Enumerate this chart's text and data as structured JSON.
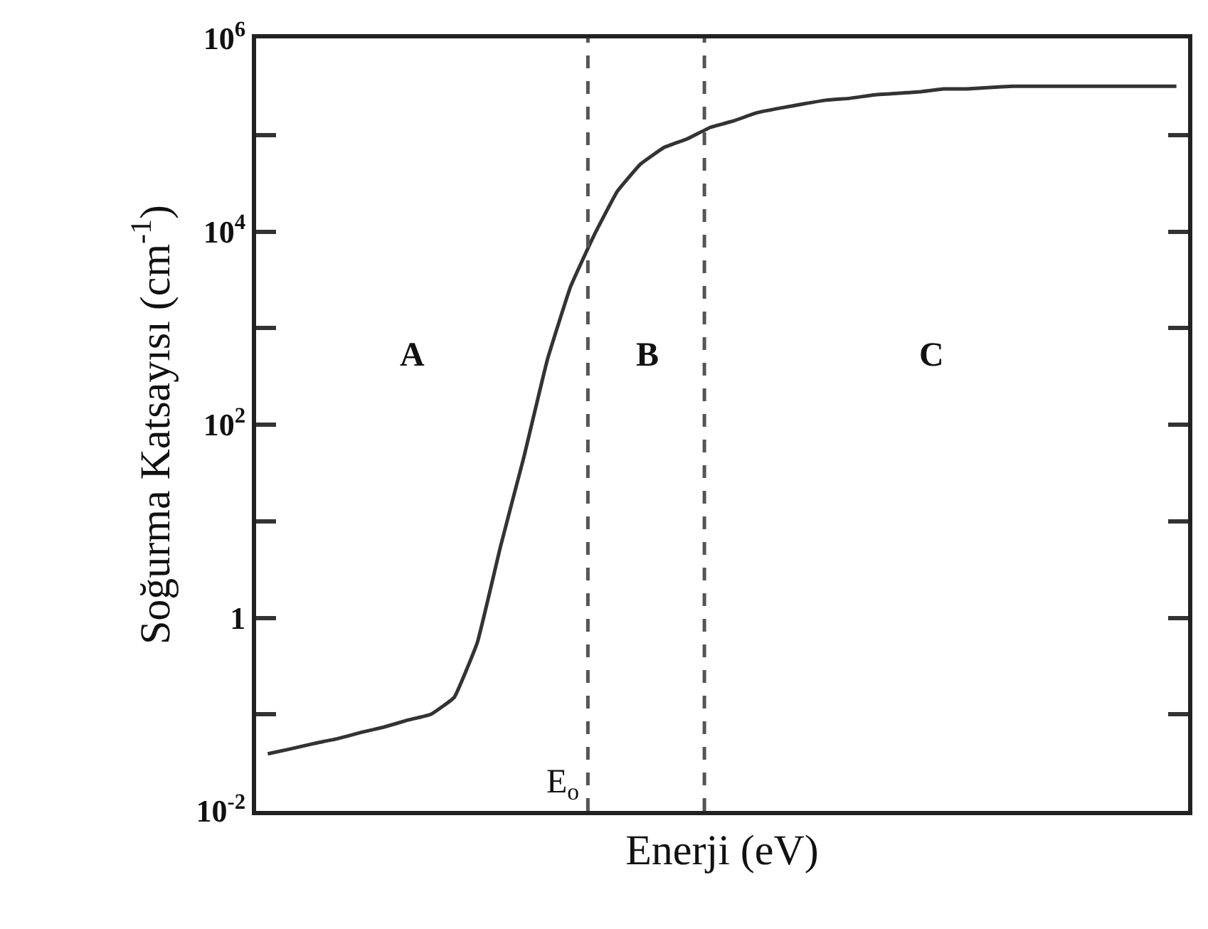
{
  "chart_data": {
    "type": "line",
    "xlabel": "Enerji (eV)",
    "ylabel": "Soğurma Katsayısı (cm$^{-1}$)",
    "categories": [
      null,
      null,
      null,
      null,
      null,
      null,
      null,
      null,
      null,
      null,
      null,
      null,
      null,
      null,
      null,
      null,
      null,
      null,
      null,
      null,
      null,
      null,
      null,
      null,
      null,
      null,
      null,
      null,
      null,
      null,
      null,
      null,
      null,
      null,
      null,
      null,
      null,
      null,
      null,
      null
    ],
    "series": [
      {
        "color": "#333333",
        "values": [
          0.039,
          0.044,
          0.05,
          0.056,
          0.065,
          0.074,
          0.087,
          0.1,
          0.15,
          0.56,
          5.6,
          47,
          470,
          2700,
          9100,
          26000,
          50000,
          74000,
          91000,
          120000,
          140000,
          170000,
          190000,
          210000,
          230000,
          240000,
          260000,
          270000,
          280000,
          300000,
          300000,
          310000,
          320000,
          320000,
          320000,
          320000,
          320000,
          320000,
          320000,
          320000
        ]
      }
    ],
    "log": "y",
    "ylim": [
      0.01,
      1000000
    ],
    "yticks": [
      {
        "value": 0.01,
        "label": "10$^{-2}$"
      },
      {
        "value": 0.1,
        "label": null
      },
      {
        "value": 1,
        "label": "1"
      },
      {
        "value": 10,
        "label": null
      },
      {
        "value": 100,
        "label": "10$^{2}$"
      },
      {
        "value": 1000,
        "label": null
      },
      {
        "value": 10000,
        "label": "10$^{4}$"
      },
      {
        "value": 100000,
        "label": null
      },
      {
        "value": 1000000,
        "label": "10$^{6}$"
      }
    ],
    "tick_labels": "y",
    "legend": false,
    "marker": "none",
    "line_style": "solid",
    "annotations": [
      "A",
      "B",
      "C",
      "E$_{o}$"
    ]
  }
}
